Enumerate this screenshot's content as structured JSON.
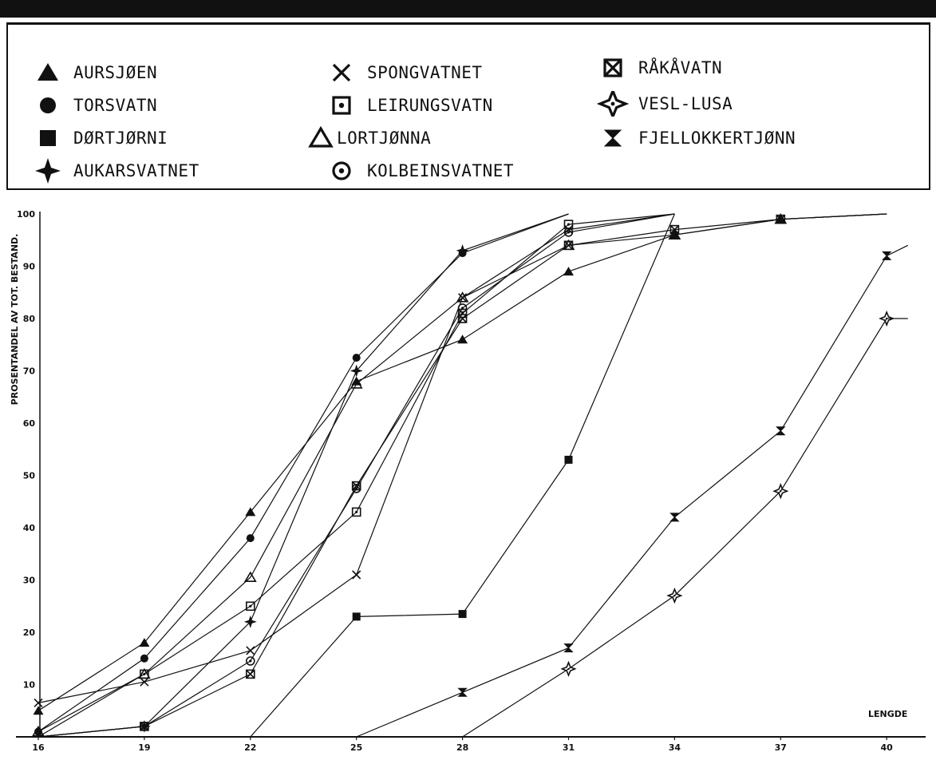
{
  "legend": {
    "items": [
      {
        "label": "AURSJØEN",
        "symbol": "triangle-filled"
      },
      {
        "label": "TORSVATN",
        "symbol": "circle-filled"
      },
      {
        "label": "DØRTJØRNI",
        "symbol": "square-filled"
      },
      {
        "label": "AUKARSVATNET",
        "symbol": "star4-filled"
      },
      {
        "label": "SPONGVATNET",
        "symbol": "x-cross"
      },
      {
        "label": "LEIRUNGSVATN",
        "symbol": "square-dot"
      },
      {
        "label": "LORTJØNNA",
        "symbol": "triangle-open"
      },
      {
        "label": "KOLBEINSVATNET",
        "symbol": "circle-dot"
      },
      {
        "label": "RÅKÅVATN",
        "symbol": "square-x"
      },
      {
        "label": "VESL-LUSA",
        "symbol": "star4-open"
      },
      {
        "label": "FJELLOKKERTJØNN",
        "symbol": "hourglass"
      }
    ]
  },
  "chart_data": {
    "type": "line",
    "xlabel": "LENGDE",
    "ylabel": "PROSENTANDEL AV TOT. BESTAND.",
    "x": [
      16,
      19,
      22,
      25,
      28,
      31,
      34,
      37,
      40
    ],
    "ylim": [
      0,
      100
    ],
    "yticks": [
      10,
      20,
      30,
      40,
      50,
      60,
      70,
      80,
      90,
      100
    ],
    "series": [
      {
        "name": "AURSJØEN",
        "symbol": "triangle-filled",
        "points": [
          [
            16,
            5
          ],
          [
            19,
            18
          ],
          [
            22,
            43
          ],
          [
            25,
            68
          ],
          [
            28,
            76
          ],
          [
            31,
            89
          ],
          [
            34,
            96
          ],
          [
            37,
            99
          ],
          [
            40,
            100
          ]
        ]
      },
      {
        "name": "TORSVATN",
        "symbol": "circle-filled",
        "points": [
          [
            16,
            1
          ],
          [
            19,
            15
          ],
          [
            22,
            38
          ],
          [
            25,
            72.5
          ],
          [
            28,
            92.5
          ],
          [
            31,
            100
          ]
        ]
      },
      {
        "name": "DØRTJØRNI",
        "symbol": "square-filled",
        "points": [
          [
            22,
            0
          ],
          [
            25,
            23
          ],
          [
            28,
            23.5
          ],
          [
            31,
            53
          ],
          [
            34,
            100
          ]
        ]
      },
      {
        "name": "AUKARSVATNET",
        "symbol": "star4-filled",
        "points": [
          [
            16,
            0
          ],
          [
            19,
            2
          ],
          [
            22,
            22
          ],
          [
            25,
            70
          ],
          [
            28,
            93
          ],
          [
            31,
            100
          ]
        ]
      },
      {
        "name": "SPONGVATNET",
        "symbol": "x-cross",
        "points": [
          [
            16,
            6.5
          ],
          [
            19,
            10.5
          ],
          [
            22,
            16.5
          ],
          [
            25,
            31
          ],
          [
            28,
            84
          ],
          [
            31,
            97
          ],
          [
            34,
            100
          ]
        ]
      },
      {
        "name": "LEIRUNGSVATN",
        "symbol": "square-dot",
        "points": [
          [
            16,
            0
          ],
          [
            19,
            12
          ],
          [
            22,
            25
          ],
          [
            25,
            43
          ],
          [
            28,
            81
          ],
          [
            31,
            98
          ],
          [
            34,
            100
          ]
        ]
      },
      {
        "name": "LORTJØNNA",
        "symbol": "triangle-open",
        "points": [
          [
            16,
            1
          ],
          [
            19,
            12
          ],
          [
            22,
            30.5
          ],
          [
            25,
            67.5
          ],
          [
            28,
            84
          ],
          [
            31,
            94
          ],
          [
            34,
            96
          ],
          [
            37,
            99
          ],
          [
            40,
            100
          ]
        ]
      },
      {
        "name": "KOLBEINSVATNET",
        "symbol": "circle-dot",
        "points": [
          [
            16,
            0
          ],
          [
            19,
            2
          ],
          [
            22,
            14.5
          ],
          [
            25,
            47.5
          ],
          [
            28,
            82
          ],
          [
            31,
            96.5
          ],
          [
            34,
            100
          ]
        ]
      },
      {
        "name": "RÅKÅVATN",
        "symbol": "square-x",
        "points": [
          [
            16,
            0
          ],
          [
            19,
            2
          ],
          [
            22,
            12
          ],
          [
            25,
            48
          ],
          [
            28,
            80
          ],
          [
            31,
            94
          ],
          [
            34,
            97
          ],
          [
            37,
            99
          ],
          [
            40,
            100
          ]
        ]
      },
      {
        "name": "VESL-LUSA",
        "symbol": "star4-open",
        "points": [
          [
            28,
            0
          ],
          [
            31,
            13
          ],
          [
            34,
            27
          ],
          [
            37,
            47
          ],
          [
            40,
            80
          ],
          [
            40.6,
            80
          ]
        ]
      },
      {
        "name": "FJELLOKKERTJØNN",
        "symbol": "hourglass",
        "points": [
          [
            25,
            0
          ],
          [
            28,
            8.5
          ],
          [
            31,
            17
          ],
          [
            34,
            42
          ],
          [
            37,
            58.5
          ],
          [
            40,
            92
          ],
          [
            40.6,
            94
          ]
        ]
      }
    ]
  }
}
